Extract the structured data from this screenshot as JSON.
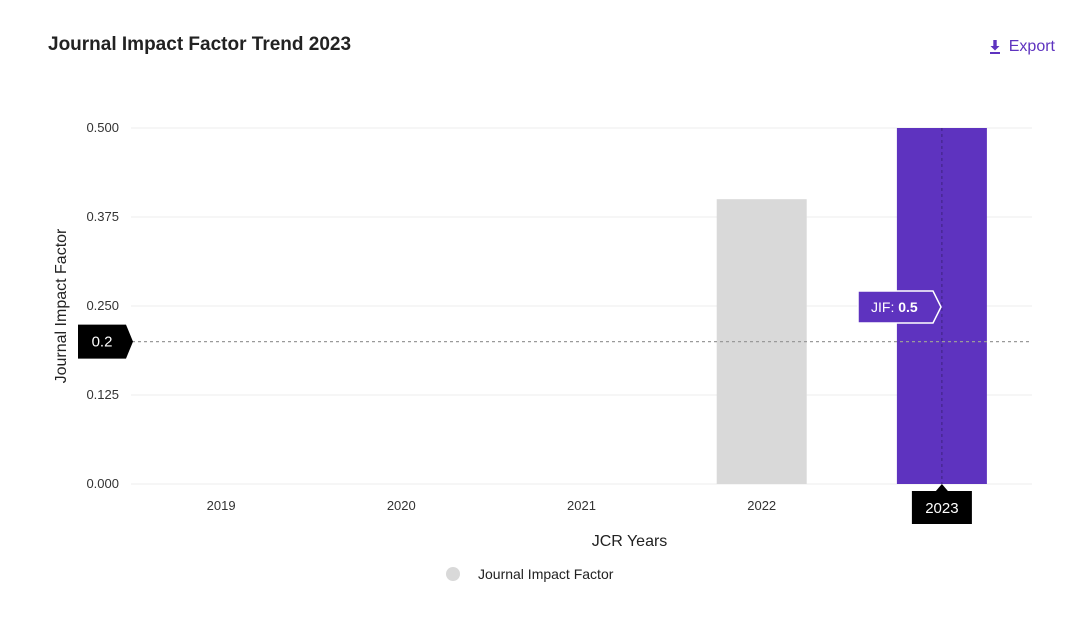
{
  "header": {
    "title": "Journal Impact Factor Trend 2023",
    "export_label": "Export",
    "export_icon": "download-icon"
  },
  "colors": {
    "accent": "#5e33bf",
    "bar_default": "#d9d9d9",
    "bar_highlight": "#5e33bf",
    "grid": "#ececec",
    "badge_bg": "#000000"
  },
  "chart_data": {
    "type": "bar",
    "categories": [
      "2019",
      "2020",
      "2021",
      "2022",
      "2023"
    ],
    "series": [
      {
        "name": "Journal Impact Factor",
        "values": [
          null,
          null,
          null,
          0.4,
          0.5
        ]
      }
    ],
    "highlighted_category": "2023",
    "xlabel": "JCR Years",
    "ylabel": "Journal Impact Factor",
    "ylim": [
      0,
      0.5
    ],
    "yticks": [
      "0.000",
      "0.125",
      "0.250",
      "0.375",
      "0.500"
    ],
    "grid": true,
    "legend_position": "bottom-center",
    "crosshair_value": 0.2,
    "crosshair_label": "0.2",
    "tooltip": {
      "prefix": "JIF: ",
      "value": "0.5"
    },
    "x_highlight_label": "2023"
  },
  "legend": {
    "label": "Journal Impact Factor",
    "color": "#d9d9d9"
  }
}
